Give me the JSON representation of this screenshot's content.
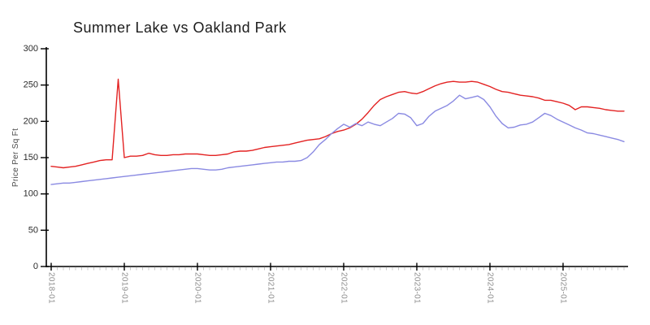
{
  "title": "Summer Lake vs Oakland Park",
  "colors": {
    "summer_lake": "#e32222",
    "oakland_park": "#8a8ae2",
    "axis": "#000000",
    "y_tick_label": "#2b2b2b",
    "x_tick_label": "#8f8f8f",
    "minor_tick": "#c8c8c8",
    "background": "#ffffff"
  },
  "chart_data": {
    "type": "line",
    "title": "Summer Lake vs Oakland Park",
    "xlabel": "",
    "ylabel": "Price Per Sq Ft",
    "ylim": [
      0,
      300
    ],
    "yticks": [
      0,
      50,
      100,
      150,
      200,
      250,
      300
    ],
    "x_start": "2018-01",
    "x_end": "2025-11",
    "x_frequency": "monthly",
    "xtick_labels": [
      "2018-01",
      "2019-01",
      "2020-01",
      "2021-01",
      "2022-01",
      "2023-01",
      "2024-01",
      "2025-01"
    ],
    "x_minor_ticks": "monthly",
    "grid": false,
    "legend_position": "none",
    "style": "xkcd-handdrawn",
    "series": [
      {
        "name": "Summer Lake",
        "color": "#e32222",
        "values": [
          138,
          137,
          136,
          137,
          138,
          140,
          142,
          144,
          146,
          147,
          147,
          258,
          150,
          152,
          152,
          153,
          156,
          154,
          153,
          153,
          154,
          154,
          155,
          155,
          155,
          154,
          153,
          153,
          154,
          155,
          158,
          159,
          159,
          160,
          162,
          164,
          165,
          166,
          167,
          168,
          170,
          172,
          174,
          175,
          176,
          179,
          183,
          186,
          188,
          191,
          196,
          203,
          212,
          222,
          230,
          234,
          237,
          240,
          241,
          239,
          238,
          241,
          245,
          249,
          252,
          254,
          255,
          254,
          254,
          255,
          254,
          251,
          248,
          244,
          241,
          240,
          238,
          236,
          235,
          234,
          232,
          229,
          229,
          227,
          225,
          222,
          216,
          220,
          220,
          219,
          218,
          216,
          215,
          214,
          214
        ]
      },
      {
        "name": "Oakland Park",
        "color": "#8a8ae2",
        "values": [
          113,
          114,
          115,
          115,
          116,
          117,
          118,
          119,
          120,
          121,
          122,
          123,
          124,
          125,
          126,
          127,
          128,
          129,
          130,
          131,
          132,
          133,
          134,
          135,
          135,
          134,
          133,
          133,
          134,
          136,
          137,
          138,
          139,
          140,
          141,
          142,
          143,
          144,
          144,
          145,
          145,
          146,
          150,
          158,
          168,
          175,
          183,
          190,
          196,
          192,
          197,
          194,
          199,
          196,
          194,
          199,
          204,
          211,
          210,
          205,
          194,
          197,
          207,
          214,
          218,
          222,
          228,
          236,
          231,
          233,
          235,
          230,
          220,
          207,
          197,
          191,
          192,
          195,
          196,
          199,
          205,
          211,
          208,
          203,
          199,
          195,
          191,
          188,
          184,
          183,
          181,
          179,
          177,
          175,
          172
        ]
      }
    ]
  }
}
